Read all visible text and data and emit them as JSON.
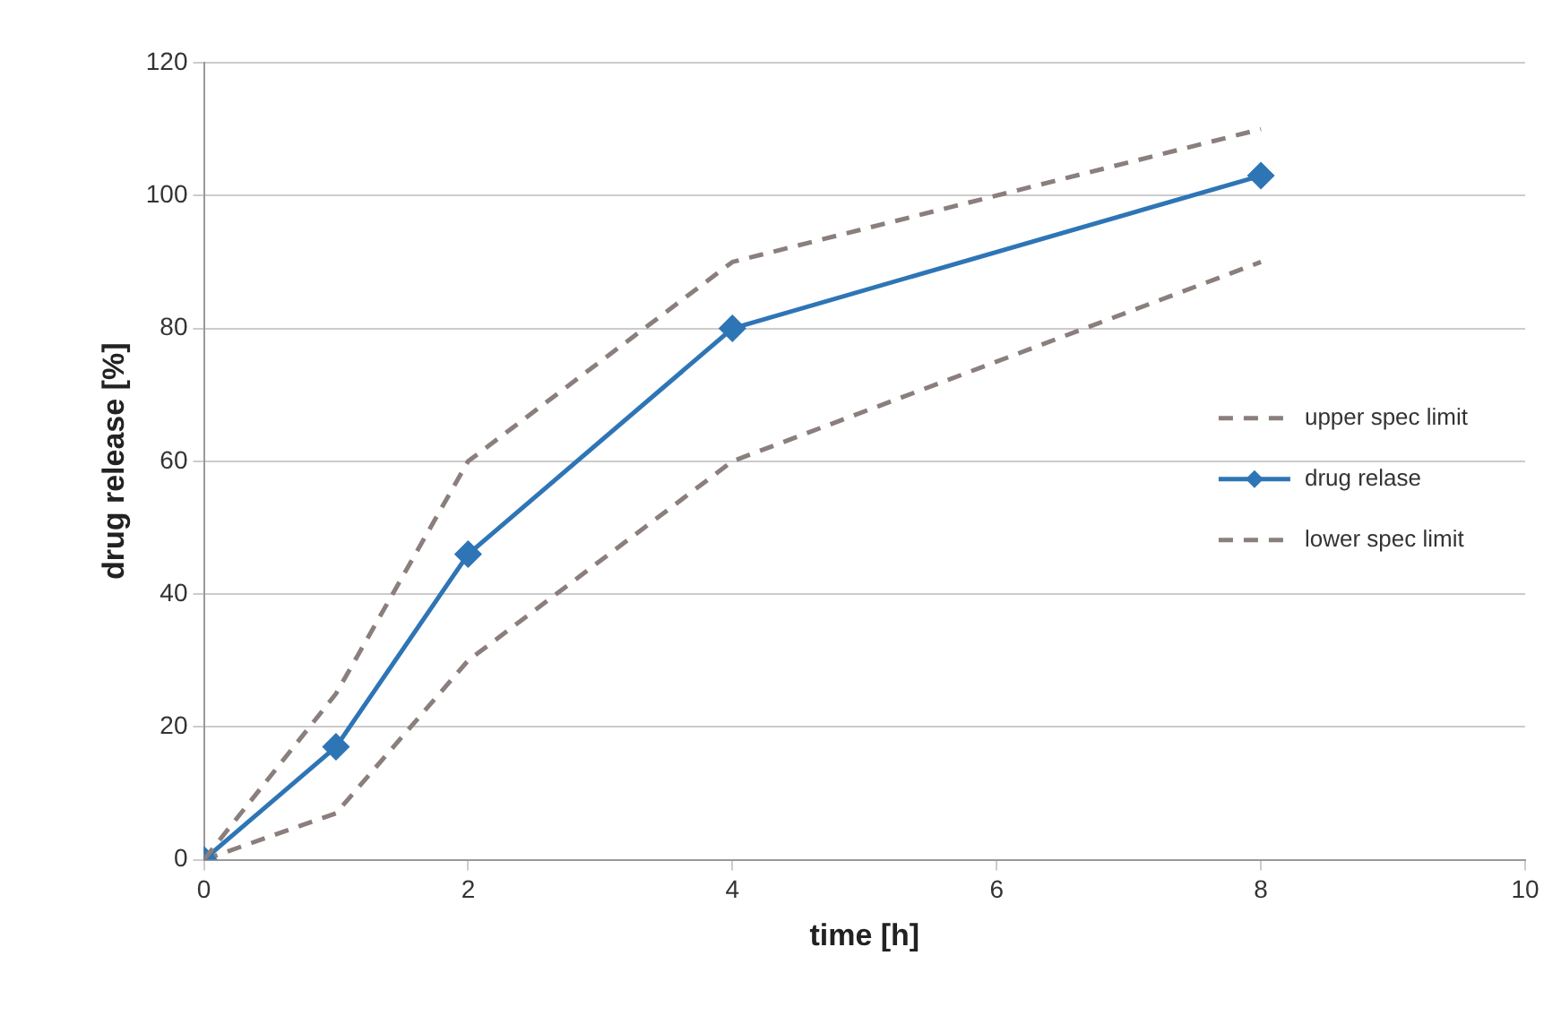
{
  "chart_data": {
    "type": "line",
    "xlabel": "time [h]",
    "ylabel": "drug release [%]",
    "xlim": [
      0,
      10
    ],
    "xticks": [
      0,
      2,
      4,
      6,
      8,
      10
    ],
    "ylim": [
      0,
      120
    ],
    "yticks": [
      0,
      20,
      40,
      60,
      80,
      100,
      120
    ],
    "grid": "y",
    "legend": "right",
    "series": [
      {
        "name": "upper spec limit",
        "color": "#8a7f7c",
        "x": [
          0,
          1,
          2,
          4,
          8
        ],
        "values": [
          0,
          25,
          60,
          90,
          110
        ],
        "line_style": "dashed",
        "marker": "none"
      },
      {
        "name": "drug relase",
        "color": "#2e75b6",
        "x": [
          0,
          1,
          2,
          4,
          8
        ],
        "values": [
          0,
          17,
          46,
          80,
          103
        ],
        "line_style": "solid",
        "marker": "diamond"
      },
      {
        "name": "lower spec limit",
        "color": "#8a7f7c",
        "x": [
          0,
          1,
          2,
          4,
          8
        ],
        "values": [
          0,
          7,
          30,
          60,
          90
        ],
        "line_style": "dashed",
        "marker": "none"
      }
    ]
  }
}
